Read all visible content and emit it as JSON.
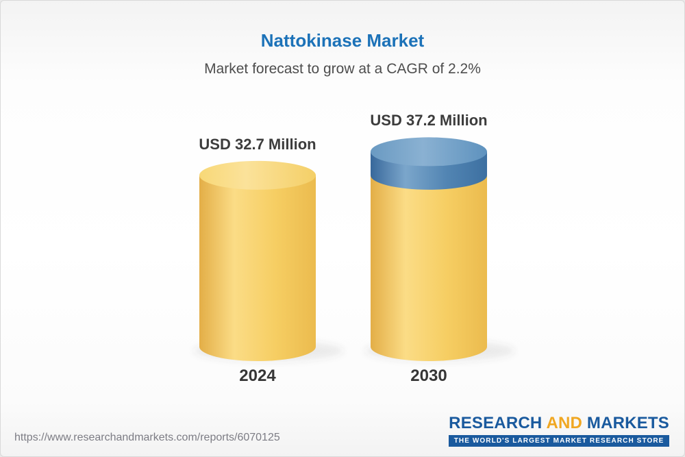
{
  "header": {
    "title": "Nattokinase Market",
    "subtitle": "Market forecast to grow at a CAGR of 2.2%"
  },
  "footer": {
    "url": "https://www.researchandmarkets.com/reports/6070125",
    "logo": {
      "research": "RESEARCH",
      "and": "AND",
      "markets": "MARKETS",
      "tagline": "THE WORLD'S LARGEST MARKET RESEARCH STORE"
    }
  },
  "chart_data": {
    "type": "bar",
    "variant": "3d-cylinder",
    "title": "Nattokinase Market",
    "subtitle": "Market forecast to grow at a CAGR of 2.2%",
    "cagr": "2.2%",
    "unit": "USD Million",
    "categories": [
      "2024",
      "2030"
    ],
    "values": [
      32.7,
      37.2
    ],
    "value_labels": [
      "USD 32.7 Million",
      "USD 37.2 Million"
    ],
    "growth_cap_note": "blue cap on 2030 bar represents growth over 2024",
    "ylim": [
      0,
      40
    ],
    "grid": false,
    "legend": "none",
    "colors": {
      "bar_gold": "#F6CE63",
      "growth_cap_blue": "#4E82AE",
      "title_blue": "#1C72B8",
      "label_text": "#3C3C3C"
    }
  }
}
